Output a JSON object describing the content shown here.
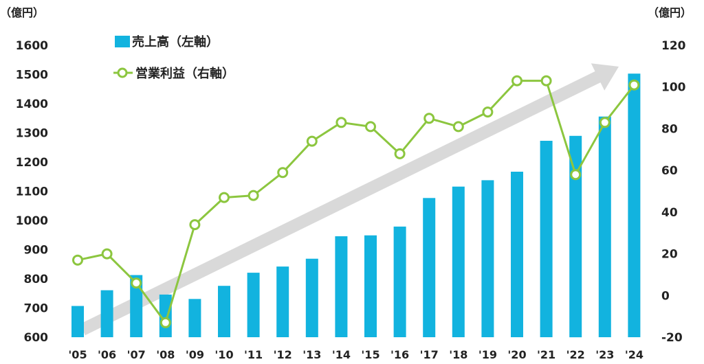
{
  "chart_data": {
    "type": "bar+line",
    "categories": [
      "'05",
      "'06",
      "'07",
      "'08",
      "'09",
      "'10",
      "'11",
      "'12",
      "'13",
      "'14",
      "'15",
      "'16",
      "'17",
      "'18",
      "'19",
      "'20",
      "'21",
      "'22",
      "'23",
      "'24"
    ],
    "series": [
      {
        "name": "売上高（左軸）",
        "axis": "left",
        "type": "bar",
        "color": "#12b3df",
        "values": [
          707,
          761,
          813,
          746,
          731,
          776,
          821,
          842,
          869,
          946,
          949,
          979,
          1077,
          1116,
          1138,
          1167,
          1273,
          1290,
          1356,
          1503
        ]
      },
      {
        "name": "営業利益（右軸）",
        "axis": "right",
        "type": "line",
        "color": "#8cc63f",
        "values": [
          17,
          20,
          6,
          -13,
          34,
          47,
          48,
          59,
          74,
          83,
          81,
          68,
          85,
          81,
          88,
          103,
          103,
          58,
          83,
          101
        ]
      }
    ],
    "left_axis": {
      "unit": "（億円）",
      "min": 600,
      "max": 1600,
      "ticks": [
        "1600",
        "1500",
        "1400",
        "1300",
        "1200",
        "1100",
        "1000",
        "900",
        "800",
        "700",
        "600"
      ]
    },
    "right_axis": {
      "unit": "（億円）",
      "min": -20,
      "max": 120,
      "ticks": [
        "120",
        "100",
        "80",
        "60",
        "40",
        "20",
        "0",
        "-20"
      ]
    },
    "trend_arrow_color": "#d9d9d9",
    "legend": [
      "売上高（左軸）",
      "営業利益（右軸）"
    ]
  }
}
